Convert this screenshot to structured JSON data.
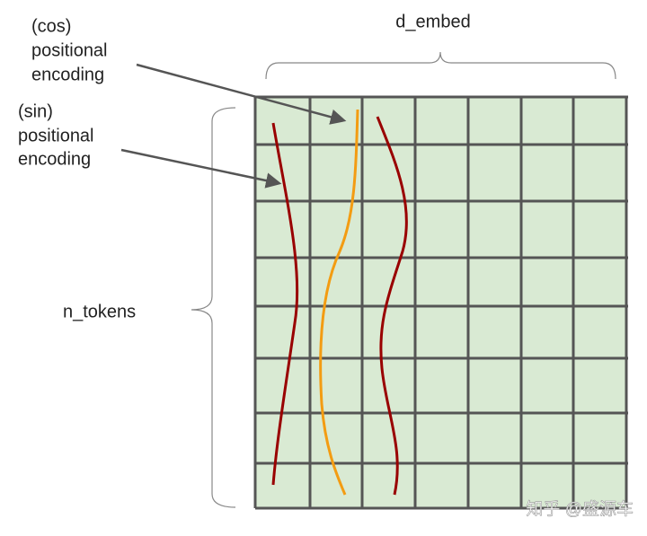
{
  "labels": {
    "cos": [
      "(cos)",
      "positional",
      "encoding"
    ],
    "sin": [
      "(sin)",
      "positional",
      "encoding"
    ],
    "d_embed": "d_embed",
    "n_tokens": "n_tokens"
  },
  "watermark": "知乎 @盛源车"
}
